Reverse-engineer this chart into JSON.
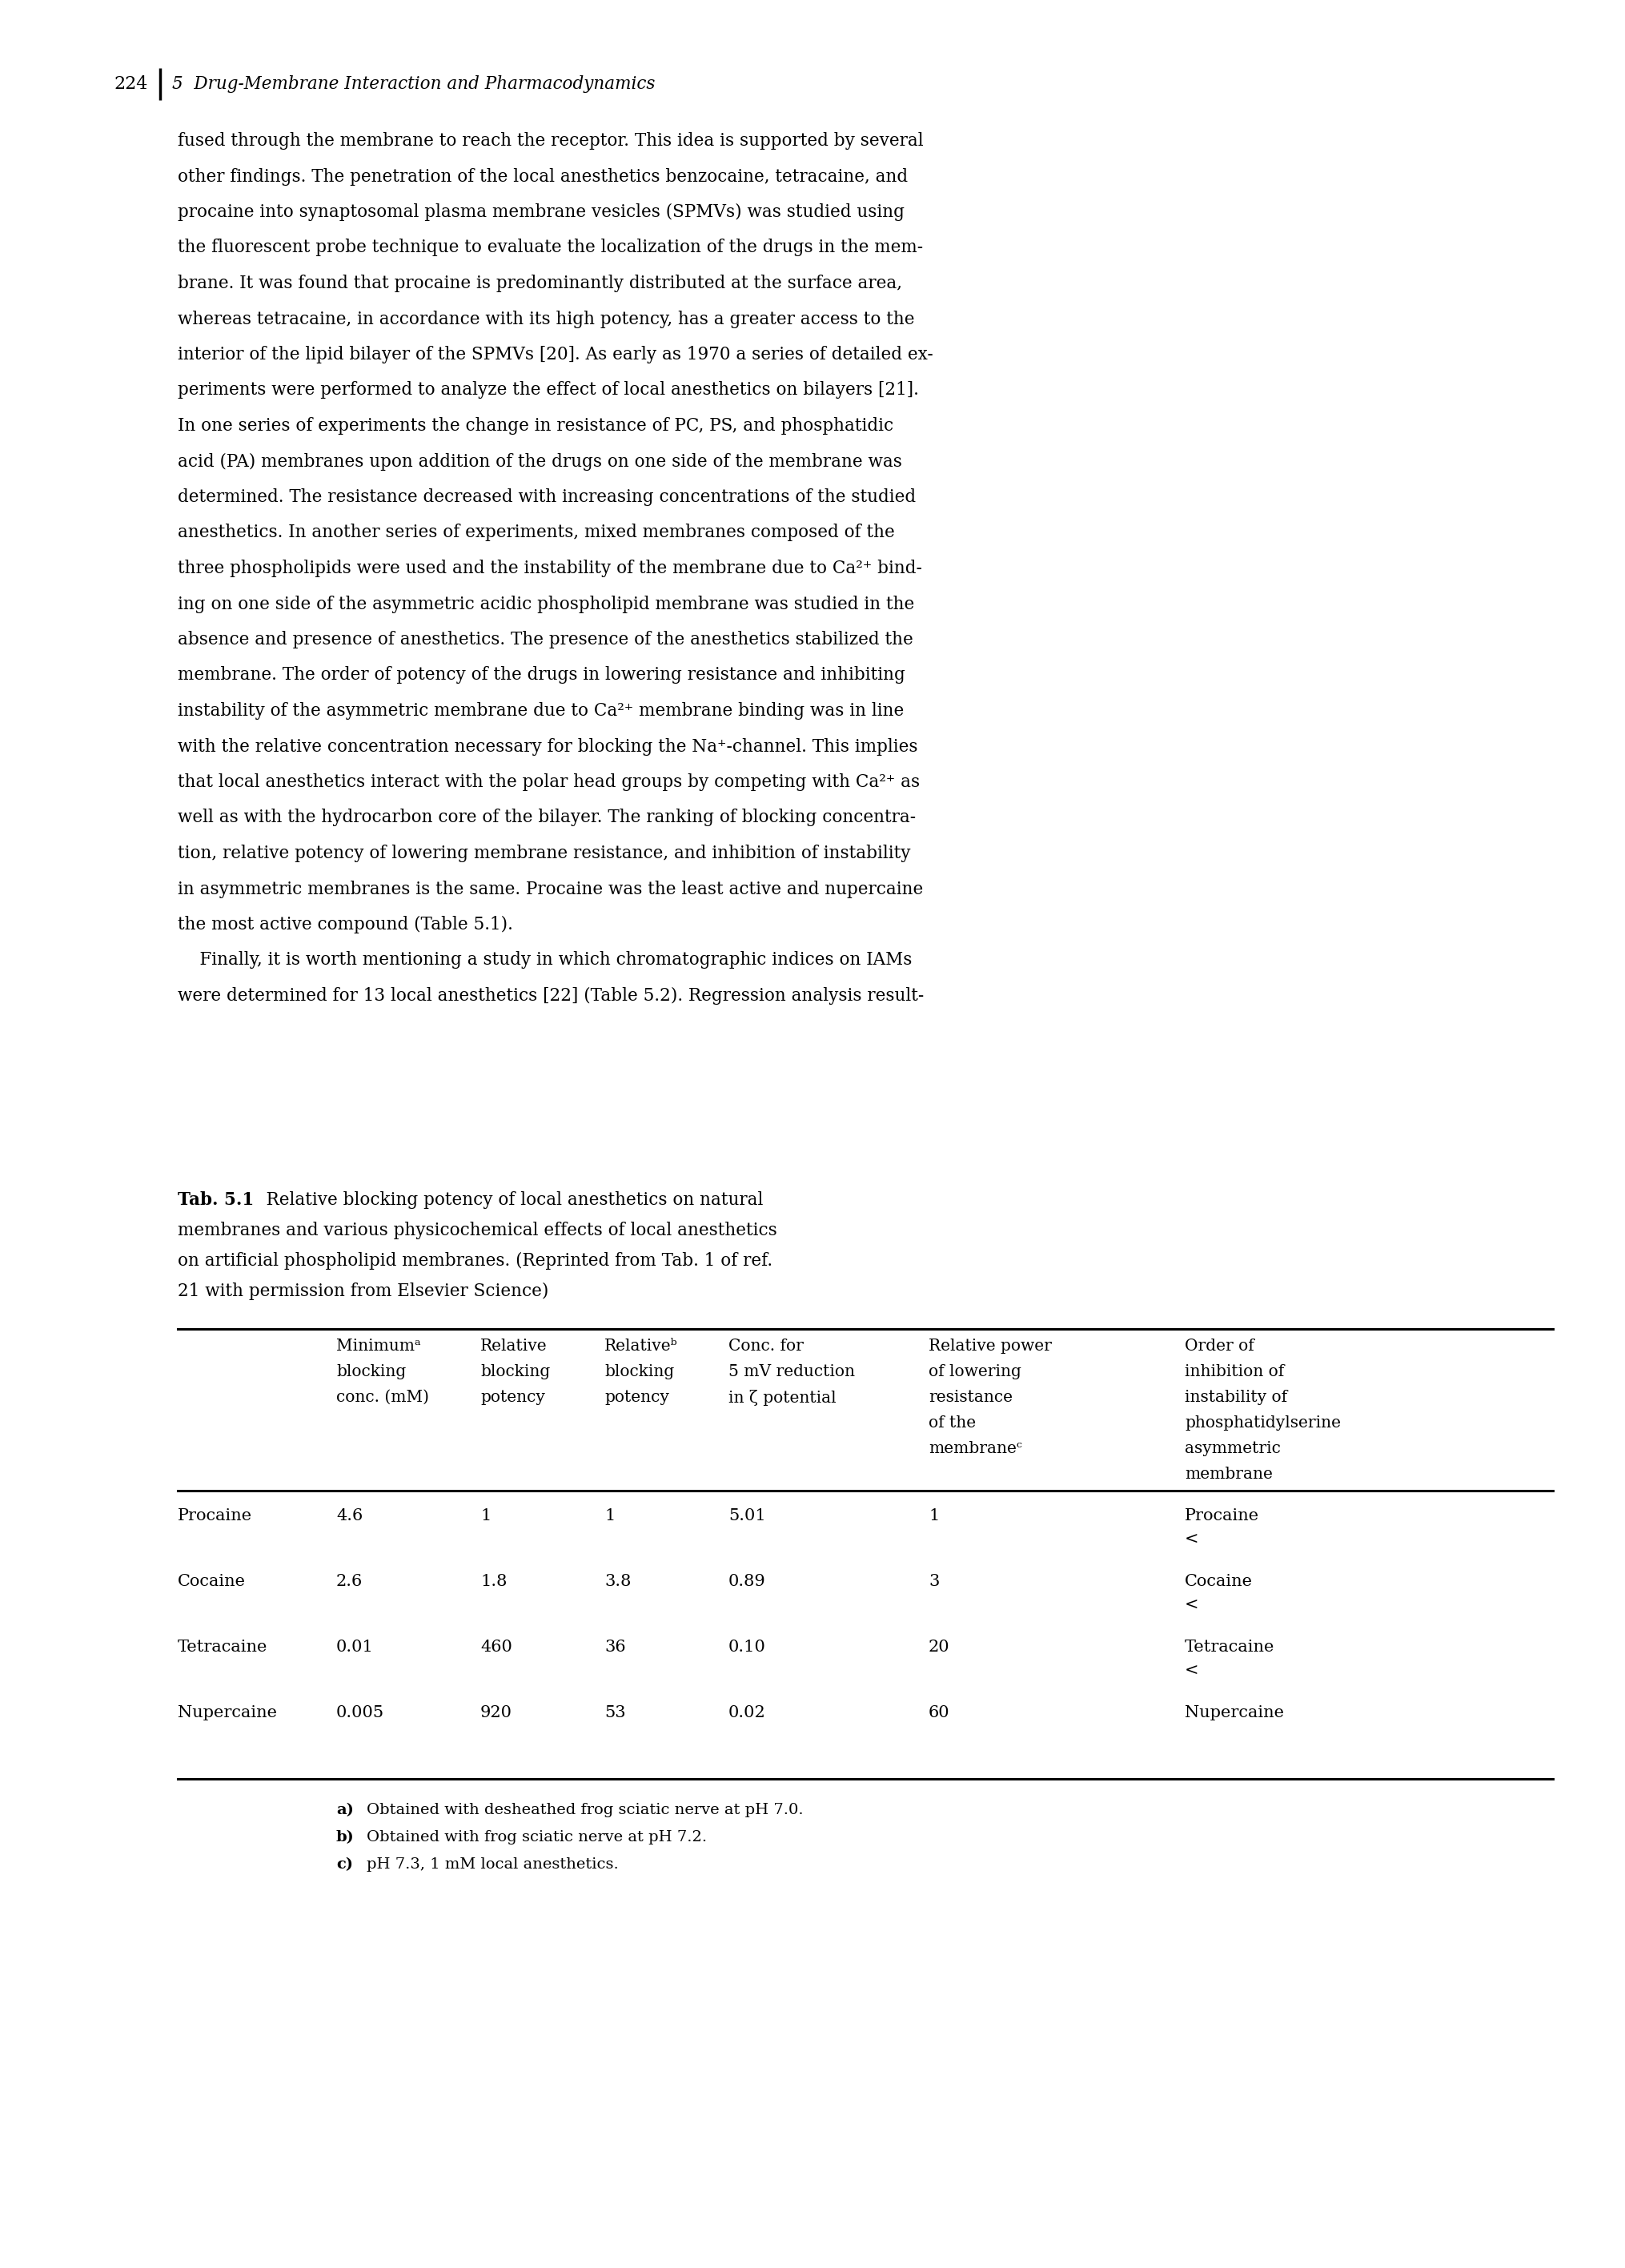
{
  "page_number": "224",
  "chapter_header": "5  Drug-Membrane Interaction and Pharmacodynamics",
  "body_lines": [
    "fused through the membrane to reach the receptor. This idea is supported by several",
    "other findings. The penetration of the local anesthetics benzocaine, tetracaine, and",
    "procaine into synaptosomal plasma membrane vesicles (SPMVs) was studied using",
    "the fluorescent probe technique to evaluate the localization of the drugs in the mem-",
    "brane. It was found that procaine is predominantly distributed at the surface area,",
    "whereas tetracaine, in accordance with its high potency, has a greater access to the",
    "interior of the lipid bilayer of the SPMVs [20]. As early as 1970 a series of detailed ex-",
    "periments were performed to analyze the effect of local anesthetics on bilayers [21].",
    "In one series of experiments the change in resistance of PC, PS, and phosphatidic",
    "acid (PA) membranes upon addition of the drugs on one side of the membrane was",
    "determined. The resistance decreased with increasing concentrations of the studied",
    "anesthetics. In another series of experiments, mixed membranes composed of the",
    "three phospholipids were used and the instability of the membrane due to Ca²⁺ bind-",
    "ing on one side of the asymmetric acidic phospholipid membrane was studied in the",
    "absence and presence of anesthetics. The presence of the anesthetics stabilized the",
    "membrane. The order of potency of the drugs in lowering resistance and inhibiting",
    "instability of the asymmetric membrane due to Ca²⁺ membrane binding was in line",
    "with the relative concentration necessary for blocking the Na⁺-channel. This implies",
    "that local anesthetics interact with the polar head groups by competing with Ca²⁺ as",
    "well as with the hydrocarbon core of the bilayer. The ranking of blocking concentra-",
    "tion, relative potency of lowering membrane resistance, and inhibition of instability",
    "in asymmetric membranes is the same. Procaine was the least active and nupercaine",
    "the most active compound (Table 5.1).",
    "    Finally, it is worth mentioning a study in which chromatographic indices on IAMs",
    "were determined for 13 local anesthetics [22] (Table 5.2). Regression analysis result-"
  ],
  "caption_bold": "Tab. 5.1",
  "caption_rest_line1": "   Relative blocking potency of local anesthetics on natural",
  "caption_line2": "membranes and various physicochemical effects of local anesthetics",
  "caption_line3": "on artificial phospholipid membranes. (Reprinted from Tab. 1 of ref.",
  "caption_line4": "21 with permission from Elsevier Science)",
  "col_labels": [
    [
      "Minimumᵃ",
      "blocking",
      "conc. (mM)"
    ],
    [
      "Relative",
      "blocking",
      "potency"
    ],
    [
      "Relativeᵇ",
      "blocking",
      "potency"
    ],
    [
      "Conc. for",
      "5 mV reduction",
      "in ζ potential"
    ],
    [
      "Relative power",
      "of lowering",
      "resistance",
      "of the",
      "membraneᶜ"
    ],
    [
      "Order of",
      "inhibition of",
      "instability of",
      "phosphatidylserine",
      "asymmetric",
      "membrane"
    ]
  ],
  "rows": [
    {
      "name": "Procaine",
      "v1": "4.6",
      "v2": "1",
      "v3": "1",
      "v4": "5.01",
      "v5": "1",
      "order": [
        "Procaine",
        "<"
      ]
    },
    {
      "name": "Cocaine",
      "v1": "2.6",
      "v2": "1.8",
      "v3": "3.8",
      "v4": "0.89",
      "v5": "3",
      "order": [
        "Cocaine",
        "<"
      ]
    },
    {
      "name": "Tetracaine",
      "v1": "0.01",
      "v2": "460",
      "v3": "36",
      "v4": "0.10",
      "v5": "20",
      "order": [
        "Tetracaine",
        "<"
      ]
    },
    {
      "name": "Nupercaine",
      "v1": "0.005",
      "v2": "920",
      "v3": "53",
      "v4": "0.02",
      "v5": "60",
      "order": [
        "Nupercaine"
      ]
    }
  ],
  "footnotes": [
    [
      "a)",
      "Obtained with desheathed frog sciatic nerve at pH 7.0."
    ],
    [
      "b)",
      "Obtained with frog sciatic nerve at pH 7.2."
    ],
    [
      "c)",
      "pH 7.3, 1 mM local anesthetics."
    ]
  ]
}
